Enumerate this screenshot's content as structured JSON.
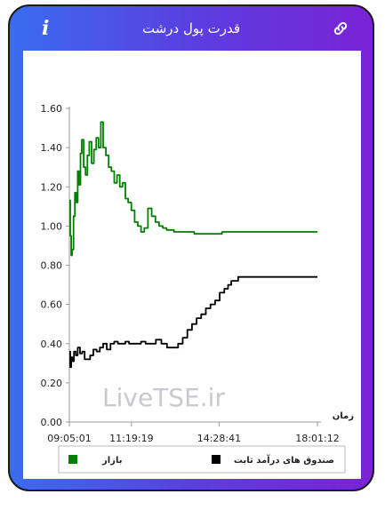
{
  "header": {
    "title": "قدرت پول درشت",
    "info_icon": "info-icon",
    "link_icon": "link-icon"
  },
  "colors": {
    "gradient_start": "#3a6cf0",
    "gradient_end": "#7a22d6",
    "series_market": "#008000",
    "series_fixed_income": "#000000",
    "watermark": "#c9c9cf"
  },
  "watermark": "LiveTSE.ir",
  "chart_data": {
    "type": "line",
    "title": "",
    "xlabel": "زمان",
    "ylabel": "",
    "ylim": [
      0,
      1.6
    ],
    "yticks": [
      "0.00",
      "0.20",
      "0.40",
      "0.60",
      "0.80",
      "1.00",
      "1.20",
      "1.40",
      "1.60"
    ],
    "xlim": [
      "09:05:01",
      "18:01:12"
    ],
    "xticks": [
      "09:05:01",
      "11:19:19",
      "14:28:41",
      "18:01:12"
    ],
    "grid": false,
    "legend_position": "bottom",
    "series": [
      {
        "name": "بازار",
        "color": "#008000",
        "x": [
          "09:05:01",
          "09:07:00",
          "09:09:00",
          "09:11:00",
          "09:14:00",
          "09:17:00",
          "09:20:00",
          "09:23:00",
          "09:26:00",
          "09:29:00",
          "09:32:00",
          "09:36:00",
          "09:40:00",
          "09:44:00",
          "09:48:00",
          "09:53:00",
          "09:58:00",
          "10:03:00",
          "10:08:00",
          "10:13:00",
          "10:18:00",
          "10:24:00",
          "10:30:00",
          "10:36:00",
          "10:42:00",
          "10:48:00",
          "10:54:00",
          "11:00:00",
          "11:06:00",
          "11:12:00",
          "11:19:00",
          "11:26:00",
          "11:33:00",
          "11:40:00",
          "11:47:00",
          "11:55:00",
          "12:03:00",
          "12:11:00",
          "12:19:00",
          "12:27:00",
          "12:35:00",
          "12:43:00",
          "12:51:00",
          "12:59:00",
          "13:07:00",
          "13:20:00",
          "13:35:00",
          "13:50:00",
          "14:05:00",
          "14:20:00",
          "14:35:00",
          "14:50:00",
          "15:30:00",
          "16:30:00",
          "17:30:00",
          "18:01:12"
        ],
        "values": [
          1.13,
          0.95,
          0.85,
          0.88,
          1.05,
          1.17,
          1.12,
          1.28,
          1.21,
          1.37,
          1.44,
          1.3,
          1.26,
          1.36,
          1.43,
          1.32,
          1.39,
          1.45,
          1.4,
          1.53,
          1.4,
          1.36,
          1.3,
          1.28,
          1.22,
          1.26,
          1.2,
          1.22,
          1.14,
          1.12,
          1.08,
          1.02,
          1.0,
          0.97,
          0.99,
          1.09,
          1.05,
          1.02,
          1.0,
          0.99,
          0.98,
          0.98,
          0.97,
          0.97,
          0.97,
          0.97,
          0.96,
          0.96,
          0.96,
          0.96,
          0.97,
          0.97,
          0.97,
          0.97,
          0.97,
          0.97
        ]
      },
      {
        "name": "صندوق های درآمد ثابت",
        "color": "#000000",
        "x": [
          "09:05:01",
          "09:07:00",
          "09:09:00",
          "09:12:00",
          "09:15:00",
          "09:19:00",
          "09:23:00",
          "09:28:00",
          "09:33:00",
          "09:38:00",
          "09:44:00",
          "09:50:00",
          "09:57:00",
          "10:04:00",
          "10:11:00",
          "10:18:00",
          "10:26:00",
          "10:34:00",
          "10:42:00",
          "10:50:00",
          "10:58:00",
          "11:06:00",
          "11:14:00",
          "11:22:00",
          "11:30:00",
          "11:40:00",
          "11:50:00",
          "12:00:00",
          "12:12:00",
          "12:24:00",
          "12:36:00",
          "12:48:00",
          "13:00:00",
          "13:10:00",
          "13:20:00",
          "13:30:00",
          "13:40:00",
          "13:50:00",
          "14:00:00",
          "14:10:00",
          "14:20:00",
          "14:30:00",
          "14:40:00",
          "14:48:00",
          "14:55:00",
          "15:10:00",
          "16:00:00",
          "17:00:00",
          "18:01:12"
        ],
        "values": [
          0.36,
          0.28,
          0.33,
          0.31,
          0.36,
          0.34,
          0.38,
          0.35,
          0.36,
          0.32,
          0.32,
          0.34,
          0.37,
          0.36,
          0.38,
          0.4,
          0.37,
          0.4,
          0.41,
          0.4,
          0.4,
          0.41,
          0.4,
          0.4,
          0.4,
          0.41,
          0.4,
          0.4,
          0.42,
          0.4,
          0.38,
          0.38,
          0.4,
          0.43,
          0.47,
          0.5,
          0.53,
          0.55,
          0.58,
          0.6,
          0.62,
          0.66,
          0.68,
          0.7,
          0.72,
          0.74,
          0.74,
          0.74,
          0.74
        ]
      }
    ]
  }
}
